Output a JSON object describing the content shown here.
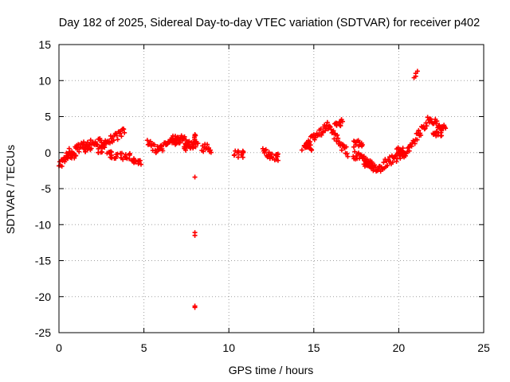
{
  "chart_data": {
    "type": "scatter",
    "title": "Day 182 of 2025, Sidereal Day-to-day VTEC variation (SDTVAR) for receiver p402",
    "xlabel": "GPS time / hours",
    "ylabel": "SDTVAR / TECUs",
    "xlim": [
      0,
      25
    ],
    "ylim": [
      -25,
      15
    ],
    "xticks": [
      0,
      5,
      10,
      15,
      20,
      25
    ],
    "yticks": [
      15,
      10,
      5,
      0,
      -5,
      -10,
      -15,
      -20,
      -25
    ],
    "xtick_labels": [
      "0",
      "5",
      "10",
      "15",
      "20",
      "25"
    ],
    "ytick_labels": [
      "15",
      "10",
      "5",
      "0",
      "-5",
      "-10",
      "-15",
      "-20",
      "-25"
    ],
    "grid": true,
    "marker": "plus",
    "series": [
      {
        "name": "SDTVAR",
        "color": "#ff0000",
        "trace_knots": [
          [
            0.0,
            -1.8
          ],
          [
            0.3,
            -1.0
          ],
          [
            0.6,
            0.0
          ],
          [
            1.0,
            0.5
          ],
          [
            1.5,
            1.0
          ],
          [
            2.0,
            1.2
          ],
          [
            2.5,
            1.5
          ],
          [
            3.0,
            1.8
          ],
          [
            3.5,
            2.3
          ],
          [
            3.9,
            3.0
          ],
          [
            5.2,
            1.5
          ],
          [
            5.8,
            0.3
          ],
          [
            6.2,
            1.0
          ],
          [
            6.8,
            2.0
          ],
          [
            7.3,
            1.8
          ],
          [
            7.8,
            1.2
          ],
          [
            8.0,
            1.0
          ],
          [
            8.5,
            0.7
          ],
          [
            9.0,
            0.5
          ],
          [
            10.0,
            0.2
          ],
          [
            11.0,
            0.3
          ],
          [
            12.0,
            0.0
          ],
          [
            12.5,
            -0.2
          ],
          [
            13.5,
            0.2
          ],
          [
            14.5,
            1.0
          ],
          [
            15.0,
            2.0
          ],
          [
            15.5,
            3.0
          ],
          [
            15.8,
            3.8
          ],
          [
            16.2,
            2.5
          ],
          [
            16.6,
            1.0
          ],
          [
            17.0,
            0.0
          ],
          [
            17.5,
            -0.5
          ],
          [
            18.0,
            -1.0
          ],
          [
            18.5,
            -2.0
          ],
          [
            18.8,
            -2.6
          ],
          [
            19.2,
            -1.5
          ],
          [
            19.6,
            -1.0
          ],
          [
            20.0,
            -0.5
          ],
          [
            20.4,
            0.0
          ],
          [
            20.8,
            1.0
          ],
          [
            21.0,
            2.0
          ],
          [
            21.3,
            3.0
          ],
          [
            21.6,
            4.0
          ],
          [
            21.8,
            4.8
          ],
          [
            22.2,
            4.0
          ],
          [
            22.8,
            3.0
          ]
        ],
        "secondary_trace_knots": [
          [
            0.7,
            -0.3
          ],
          [
            1.6,
            0.6
          ],
          [
            2.6,
            0.4
          ],
          [
            3.2,
            -0.3
          ],
          [
            3.9,
            -0.5
          ],
          [
            4.6,
            -1.2
          ],
          [
            6.9,
            1.6
          ],
          [
            7.6,
            0.8
          ],
          [
            10.6,
            -0.2
          ],
          [
            12.6,
            -0.6
          ],
          [
            14.6,
            0.8
          ],
          [
            16.4,
            4.2
          ],
          [
            17.6,
            1.2
          ],
          [
            18.2,
            -1.6
          ],
          [
            20.1,
            0.4
          ],
          [
            22.3,
            2.8
          ]
        ],
        "outliers": [
          [
            8.0,
            -3.4
          ],
          [
            8.0,
            -11.1
          ],
          [
            8.0,
            -11.5
          ],
          [
            8.0,
            -21.3
          ],
          [
            8.0,
            -21.5
          ],
          [
            21.0,
            10.6
          ],
          [
            21.0,
            11.0
          ],
          [
            20.9,
            10.4
          ],
          [
            21.1,
            11.3
          ]
        ]
      }
    ]
  }
}
